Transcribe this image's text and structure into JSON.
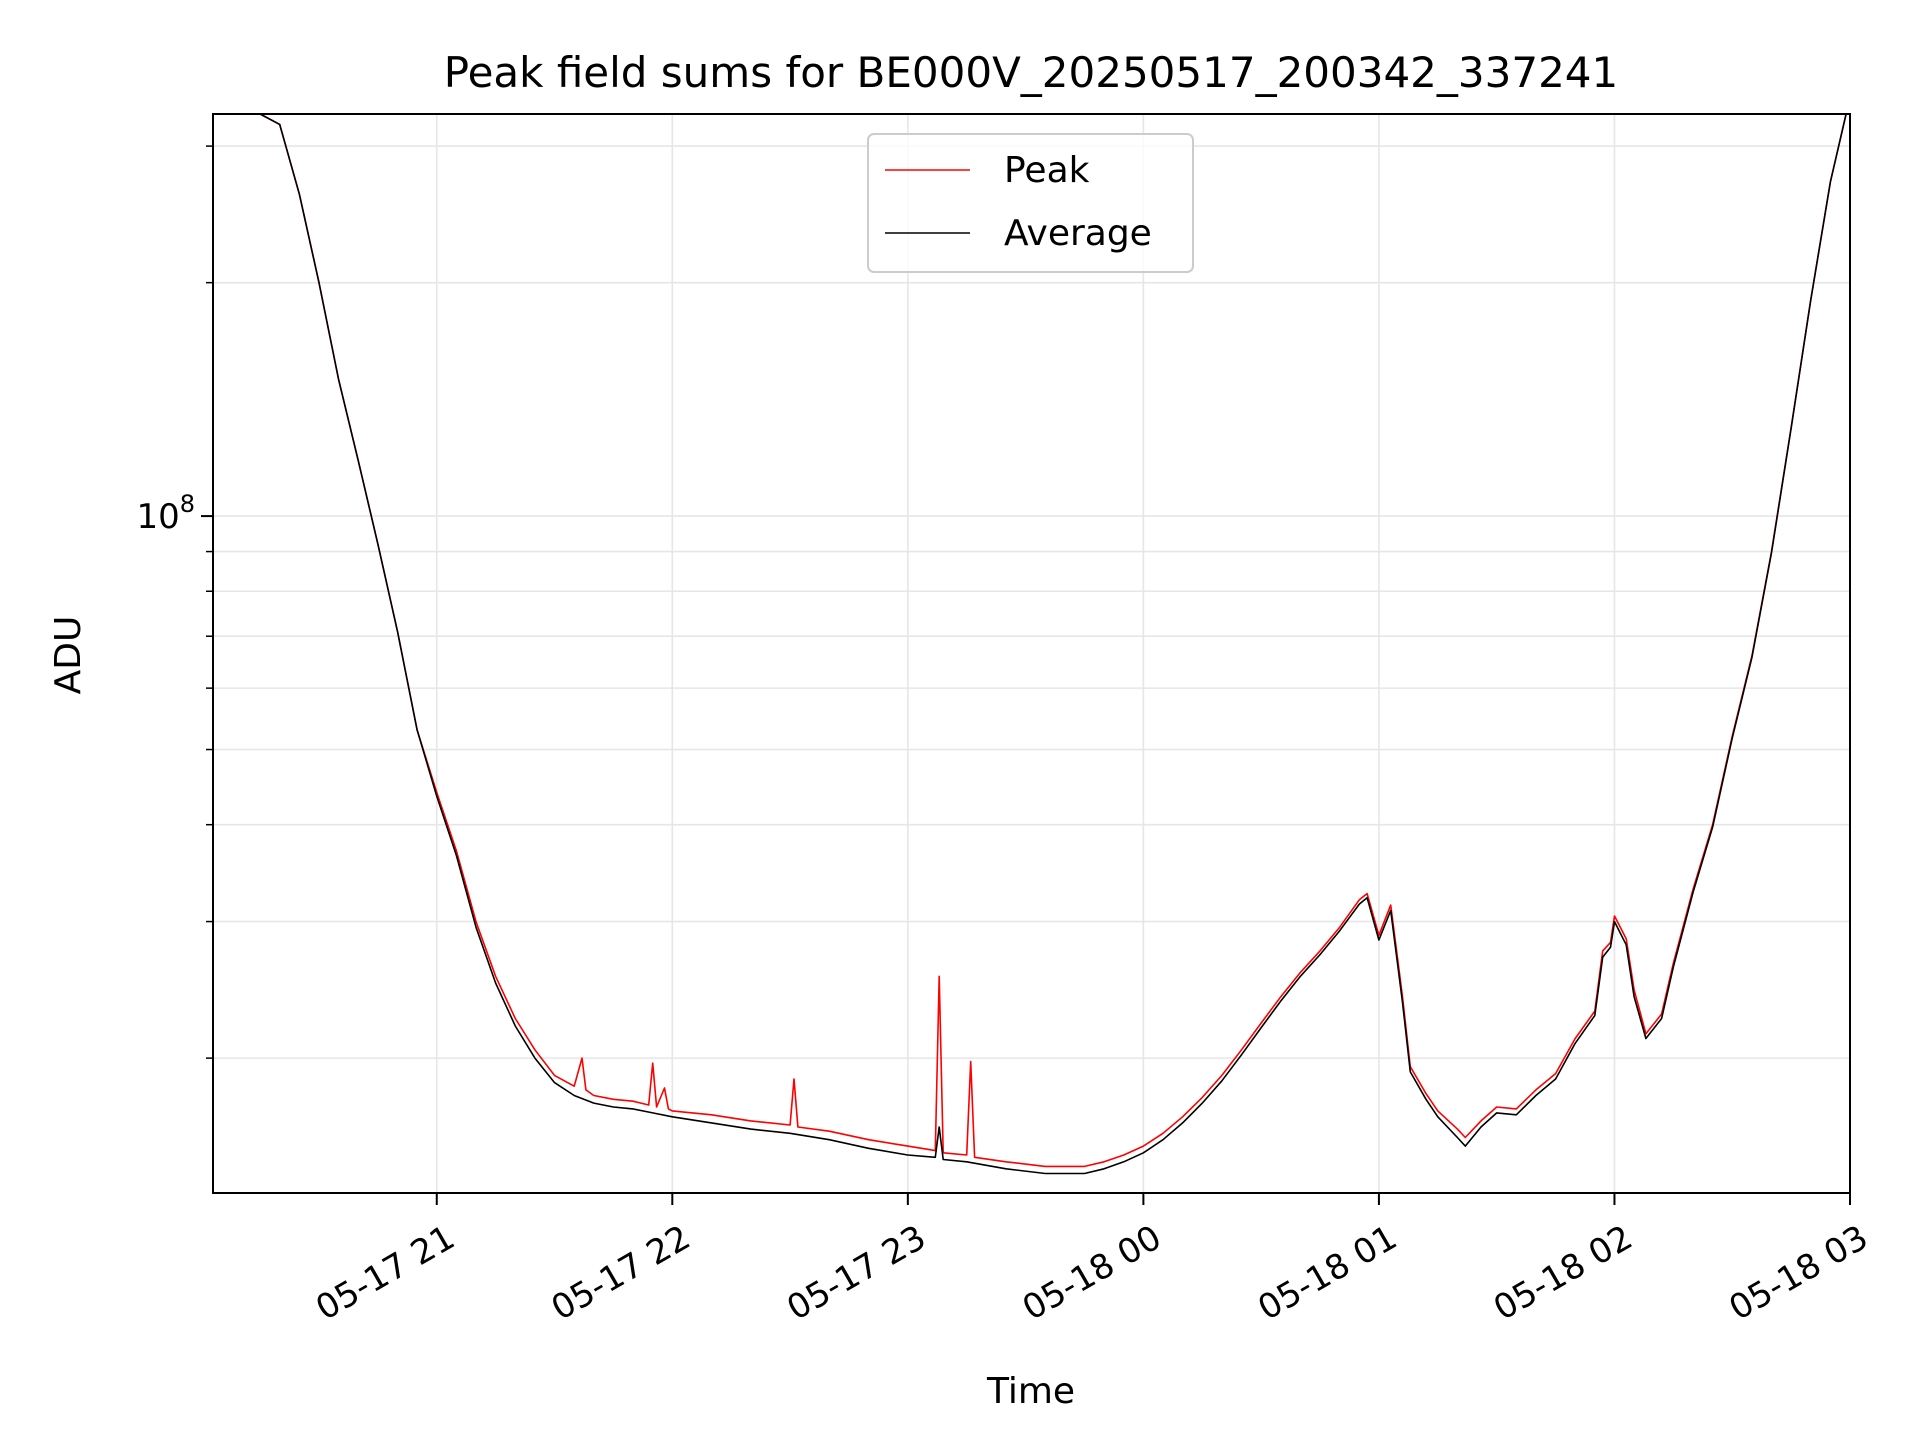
{
  "chart_data": {
    "type": "line",
    "title": "Peak field sums for BE000V_20250517_200342_337241",
    "xlabel": "Time",
    "ylabel": "ADU",
    "y_scale": "log",
    "ylim": [
      13400000,
      330000000
    ],
    "xlim": [
      "2025-05-17 20:03",
      "2025-05-18 03:00"
    ],
    "x_ticks": [
      "2025-05-17 21:00",
      "2025-05-17 22:00",
      "2025-05-17 23:00",
      "2025-05-18 00:00",
      "2025-05-18 01:00",
      "2025-05-18 02:00",
      "2025-05-18 03:00"
    ],
    "x_tick_labels": [
      "05-17 21",
      "05-17 22",
      "05-17 23",
      "05-18 00",
      "05-18 01",
      "05-18 02",
      "05-18 03"
    ],
    "y_ticks_major": [
      100000000
    ],
    "y_tick_major_label_base": "10",
    "y_tick_major_label_exp": "8",
    "y_ticks_minor": [
      20000000,
      30000000,
      40000000,
      50000000,
      60000000,
      70000000,
      80000000,
      90000000,
      200000000,
      300000000
    ],
    "grid": true,
    "legend_position": "upper-center",
    "colors": {
      "Peak": "#ff0000",
      "Average": "#000000",
      "grid": "#e6e6e6"
    },
    "series": [
      {
        "name": "Peak",
        "color": "#ff0000",
        "points": [
          [
            "2025-05-17 20:03",
            330000000
          ],
          [
            "2025-05-17 20:15",
            330000000
          ],
          [
            "2025-05-17 20:20",
            320000000
          ],
          [
            "2025-05-17 20:25",
            260000000
          ],
          [
            "2025-05-17 20:30",
            200000000
          ],
          [
            "2025-05-17 20:35",
            150000000
          ],
          [
            "2025-05-17 20:40",
            118000000
          ],
          [
            "2025-05-17 20:45",
            92000000
          ],
          [
            "2025-05-17 20:50",
            71000000
          ],
          [
            "2025-05-17 20:55",
            53000000
          ],
          [
            "2025-05-17 21:00",
            44000000
          ],
          [
            "2025-05-17 21:05",
            37000000
          ],
          [
            "2025-05-17 21:10",
            30000000
          ],
          [
            "2025-05-17 21:15",
            25500000
          ],
          [
            "2025-05-17 21:20",
            22500000
          ],
          [
            "2025-05-17 21:25",
            20500000
          ],
          [
            "2025-05-17 21:30",
            19000000
          ],
          [
            "2025-05-17 21:35",
            18400000
          ],
          [
            "2025-05-17 21:37",
            20000000
          ],
          [
            "2025-05-17 21:38",
            18200000
          ],
          [
            "2025-05-17 21:40",
            17900000
          ],
          [
            "2025-05-17 21:45",
            17700000
          ],
          [
            "2025-05-17 21:50",
            17600000
          ],
          [
            "2025-05-17 21:54",
            17400000
          ],
          [
            "2025-05-17 21:55",
            19700000
          ],
          [
            "2025-05-17 21:56",
            17300000
          ],
          [
            "2025-05-17 21:58",
            18300000
          ],
          [
            "2025-05-17 21:59",
            17200000
          ],
          [
            "2025-05-17 22:00",
            17100000
          ],
          [
            "2025-05-17 22:10",
            16900000
          ],
          [
            "2025-05-17 22:20",
            16600000
          ],
          [
            "2025-05-17 22:30",
            16400000
          ],
          [
            "2025-05-17 22:31",
            18800000
          ],
          [
            "2025-05-17 22:32",
            16300000
          ],
          [
            "2025-05-17 22:40",
            16100000
          ],
          [
            "2025-05-17 22:50",
            15700000
          ],
          [
            "2025-05-17 23:00",
            15400000
          ],
          [
            "2025-05-17 23:07",
            15200000
          ],
          [
            "2025-05-17 23:08",
            25500000
          ],
          [
            "2025-05-17 23:09",
            15100000
          ],
          [
            "2025-05-17 23:15",
            15000000
          ],
          [
            "2025-05-17 23:16",
            19800000
          ],
          [
            "2025-05-17 23:17",
            14900000
          ],
          [
            "2025-05-17 23:25",
            14700000
          ],
          [
            "2025-05-17 23:35",
            14500000
          ],
          [
            "2025-05-17 23:45",
            14500000
          ],
          [
            "2025-05-17 23:50",
            14700000
          ],
          [
            "2025-05-17 23:55",
            15000000
          ],
          [
            "2025-05-18 00:00",
            15400000
          ],
          [
            "2025-05-18 00:05",
            16000000
          ],
          [
            "2025-05-18 00:10",
            16800000
          ],
          [
            "2025-05-18 00:15",
            17800000
          ],
          [
            "2025-05-18 00:20",
            19000000
          ],
          [
            "2025-05-18 00:25",
            20500000
          ],
          [
            "2025-05-18 00:30",
            22200000
          ],
          [
            "2025-05-18 00:35",
            24000000
          ],
          [
            "2025-05-18 00:40",
            25800000
          ],
          [
            "2025-05-18 00:45",
            27500000
          ],
          [
            "2025-05-18 00:50",
            29500000
          ],
          [
            "2025-05-18 00:55",
            32000000
          ],
          [
            "2025-05-18 00:57",
            32600000
          ],
          [
            "2025-05-18 01:00",
            28800000
          ],
          [
            "2025-05-18 01:03",
            31500000
          ],
          [
            "2025-05-18 01:06",
            24000000
          ],
          [
            "2025-05-18 01:08",
            19500000
          ],
          [
            "2025-05-18 01:12",
            18000000
          ],
          [
            "2025-05-18 01:15",
            17100000
          ],
          [
            "2025-05-18 01:20",
            16200000
          ],
          [
            "2025-05-18 01:22",
            15800000
          ],
          [
            "2025-05-18 01:26",
            16600000
          ],
          [
            "2025-05-18 01:30",
            17300000
          ],
          [
            "2025-05-18 01:35",
            17200000
          ],
          [
            "2025-05-18 01:40",
            18200000
          ],
          [
            "2025-05-18 01:45",
            19100000
          ],
          [
            "2025-05-18 01:50",
            21200000
          ],
          [
            "2025-05-18 01:55",
            23000000
          ],
          [
            "2025-05-18 01:57",
            27500000
          ],
          [
            "2025-05-18 01:59",
            28200000
          ],
          [
            "2025-05-18 02:00",
            30500000
          ],
          [
            "2025-05-18 02:03",
            28500000
          ],
          [
            "2025-05-18 02:05",
            24500000
          ],
          [
            "2025-05-18 02:08",
            21500000
          ],
          [
            "2025-05-18 02:12",
            22800000
          ],
          [
            "2025-05-18 02:15",
            26500000
          ],
          [
            "2025-05-18 02:20",
            33000000
          ],
          [
            "2025-05-18 02:25",
            40000000
          ],
          [
            "2025-05-18 02:30",
            52000000
          ],
          [
            "2025-05-18 02:35",
            66000000
          ],
          [
            "2025-05-18 02:40",
            90000000
          ],
          [
            "2025-05-18 02:45",
            130000000
          ],
          [
            "2025-05-18 02:50",
            190000000
          ],
          [
            "2025-05-18 02:55",
            270000000
          ],
          [
            "2025-05-18 02:59",
            330000000
          ]
        ]
      },
      {
        "name": "Average",
        "color": "#000000",
        "points": [
          [
            "2025-05-17 20:03",
            330000000
          ],
          [
            "2025-05-17 20:15",
            330000000
          ],
          [
            "2025-05-17 20:20",
            320000000
          ],
          [
            "2025-05-17 20:25",
            260000000
          ],
          [
            "2025-05-17 20:30",
            200000000
          ],
          [
            "2025-05-17 20:35",
            150000000
          ],
          [
            "2025-05-17 20:40",
            118000000
          ],
          [
            "2025-05-17 20:45",
            92000000
          ],
          [
            "2025-05-17 20:50",
            71000000
          ],
          [
            "2025-05-17 20:55",
            53000000
          ],
          [
            "2025-05-17 21:00",
            43500000
          ],
          [
            "2025-05-17 21:05",
            36500000
          ],
          [
            "2025-05-17 21:10",
            29500000
          ],
          [
            "2025-05-17 21:15",
            25000000
          ],
          [
            "2025-05-17 21:20",
            22000000
          ],
          [
            "2025-05-17 21:25",
            20000000
          ],
          [
            "2025-05-17 21:30",
            18600000
          ],
          [
            "2025-05-17 21:35",
            17900000
          ],
          [
            "2025-05-17 21:40",
            17500000
          ],
          [
            "2025-05-17 21:45",
            17300000
          ],
          [
            "2025-05-17 21:50",
            17200000
          ],
          [
            "2025-05-17 21:55",
            17000000
          ],
          [
            "2025-05-17 22:00",
            16800000
          ],
          [
            "2025-05-17 22:10",
            16500000
          ],
          [
            "2025-05-17 22:20",
            16200000
          ],
          [
            "2025-05-17 22:30",
            16000000
          ],
          [
            "2025-05-17 22:40",
            15700000
          ],
          [
            "2025-05-17 22:50",
            15300000
          ],
          [
            "2025-05-17 23:00",
            15000000
          ],
          [
            "2025-05-17 23:07",
            14900000
          ],
          [
            "2025-05-17 23:08",
            16300000
          ],
          [
            "2025-05-17 23:09",
            14800000
          ],
          [
            "2025-05-17 23:15",
            14700000
          ],
          [
            "2025-05-17 23:25",
            14400000
          ],
          [
            "2025-05-17 23:35",
            14200000
          ],
          [
            "2025-05-17 23:45",
            14200000
          ],
          [
            "2025-05-17 23:50",
            14400000
          ],
          [
            "2025-05-17 23:55",
            14700000
          ],
          [
            "2025-05-18 00:00",
            15100000
          ],
          [
            "2025-05-18 00:05",
            15700000
          ],
          [
            "2025-05-18 00:10",
            16500000
          ],
          [
            "2025-05-18 00:15",
            17500000
          ],
          [
            "2025-05-18 00:20",
            18700000
          ],
          [
            "2025-05-18 00:25",
            20200000
          ],
          [
            "2025-05-18 00:30",
            21900000
          ],
          [
            "2025-05-18 00:35",
            23700000
          ],
          [
            "2025-05-18 00:40",
            25500000
          ],
          [
            "2025-05-18 00:45",
            27200000
          ],
          [
            "2025-05-18 00:50",
            29200000
          ],
          [
            "2025-05-18 00:55",
            31600000
          ],
          [
            "2025-05-18 00:57",
            32200000
          ],
          [
            "2025-05-18 01:00",
            28400000
          ],
          [
            "2025-05-18 01:03",
            31000000
          ],
          [
            "2025-05-18 01:06",
            23600000
          ],
          [
            "2025-05-18 01:08",
            19200000
          ],
          [
            "2025-05-18 01:12",
            17700000
          ],
          [
            "2025-05-18 01:15",
            16800000
          ],
          [
            "2025-05-18 01:20",
            15800000
          ],
          [
            "2025-05-18 01:22",
            15400000
          ],
          [
            "2025-05-18 01:26",
            16300000
          ],
          [
            "2025-05-18 01:30",
            17000000
          ],
          [
            "2025-05-18 01:35",
            16900000
          ],
          [
            "2025-05-18 01:40",
            17900000
          ],
          [
            "2025-05-18 01:45",
            18800000
          ],
          [
            "2025-05-18 01:50",
            20900000
          ],
          [
            "2025-05-18 01:55",
            22700000
          ],
          [
            "2025-05-18 01:57",
            27000000
          ],
          [
            "2025-05-18 01:59",
            27800000
          ],
          [
            "2025-05-18 02:00",
            30000000
          ],
          [
            "2025-05-18 02:03",
            28000000
          ],
          [
            "2025-05-18 02:05",
            24000000
          ],
          [
            "2025-05-18 02:08",
            21200000
          ],
          [
            "2025-05-18 02:12",
            22500000
          ],
          [
            "2025-05-18 02:15",
            26200000
          ],
          [
            "2025-05-18 02:20",
            32700000
          ],
          [
            "2025-05-18 02:25",
            39700000
          ],
          [
            "2025-05-18 02:30",
            51700000
          ],
          [
            "2025-05-18 02:35",
            65700000
          ],
          [
            "2025-05-18 02:40",
            89700000
          ],
          [
            "2025-05-18 02:45",
            129700000
          ],
          [
            "2025-05-18 02:50",
            189700000
          ],
          [
            "2025-05-18 02:55",
            269700000
          ],
          [
            "2025-05-18 02:59",
            330000000
          ]
        ]
      }
    ]
  }
}
